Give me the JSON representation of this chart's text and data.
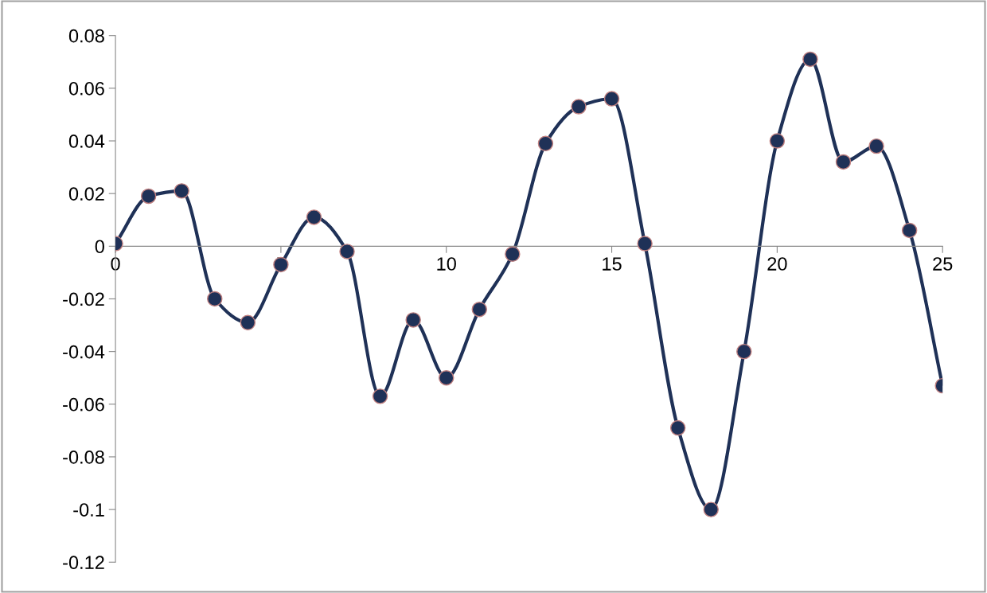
{
  "chart_data": {
    "type": "line",
    "x": [
      0,
      1,
      2,
      3,
      4,
      5,
      6,
      7,
      8,
      9,
      10,
      11,
      12,
      13,
      14,
      15,
      16,
      17,
      18,
      19,
      20,
      21,
      22,
      23,
      24,
      25
    ],
    "series": [
      {
        "color": "#1f3157",
        "values": [
          0.001,
          0.019,
          0.021,
          -0.02,
          -0.029,
          -0.007,
          0.011,
          -0.002,
          -0.057,
          -0.028,
          -0.05,
          -0.024,
          -0.003,
          0.039,
          0.053,
          0.056,
          0.001,
          -0.069,
          -0.1,
          -0.04,
          0.04,
          0.071,
          0.032,
          0.038,
          0.006,
          -0.053
        ]
      }
    ],
    "xlim": [
      0,
      25
    ],
    "xticks": [
      0,
      5,
      10,
      15,
      20,
      25
    ],
    "ylim": [
      -0.12,
      0.08
    ],
    "yticks": [
      -0.12,
      -0.1,
      -0.08,
      -0.06,
      -0.04,
      -0.02,
      0,
      0.02,
      0.04,
      0.06,
      0.08
    ],
    "marker": "circle",
    "line_style": "solid",
    "grid": false,
    "legend": false
  }
}
